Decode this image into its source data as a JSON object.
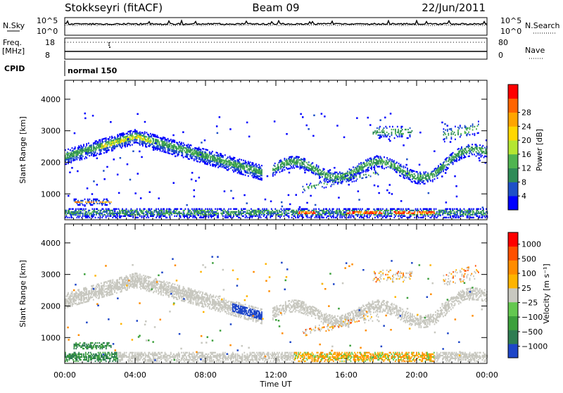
{
  "header": {
    "station": "Stokkseyri (fitACF)",
    "beam": "Beam 09",
    "date": "22/Jun/2011"
  },
  "strip": {
    "nsky_label": "N.Sky",
    "nsky_ticks": [
      "10^5",
      "10^0"
    ],
    "nsearch_label": "N.Search",
    "nsearch_ticks": [
      "10^5",
      "10^0"
    ],
    "freq_label": "Freq.",
    "freq_unit": "[MHz]",
    "freq_ticks": [
      "18",
      "8"
    ],
    "nave_label": "Nave",
    "nave_ticks": [
      "80",
      "0"
    ],
    "cpid_label": "CPID",
    "cpid_value": "normal 150"
  },
  "colors": {
    "power_scale": [
      "#0000ff",
      "#1e50c8",
      "#2e8b57",
      "#50b450",
      "#b4e632",
      "#ffd700",
      "#ffa500",
      "#ff6400",
      "#ff0000"
    ],
    "velocity_scale": [
      "#1e46c8",
      "#2e7d52",
      "#3ca03c",
      "#64c850",
      "#c8c8c0",
      "#ffb400",
      "#ff8c00",
      "#ff5000",
      "#ff0000"
    ]
  },
  "chart_data": [
    {
      "type": "heatmap",
      "name": "power",
      "ylabel": "Slant Range [km]",
      "ylim": [
        180,
        4600
      ],
      "yticks": [
        "1000",
        "2000",
        "3000",
        "4000"
      ],
      "xlim": [
        "00:00",
        "24:00"
      ],
      "xticks": [
        "00:00",
        "04:00",
        "08:00",
        "12:00",
        "16:00",
        "20:00",
        "00:00"
      ],
      "colorbar": {
        "label": "Power [dB]",
        "range": [
          0,
          30
        ],
        "ticks": [
          "4",
          "8",
          "12",
          "16",
          "20",
          "24",
          "28"
        ]
      }
    },
    {
      "type": "heatmap",
      "name": "velocity",
      "ylabel": "Slant Range [km]",
      "ylim": [
        180,
        4600
      ],
      "yticks": [
        "1000",
        "2000",
        "3000",
        "4000"
      ],
      "xlim": [
        "00:00",
        "24:00"
      ],
      "xticks": [
        "00:00",
        "04:00",
        "08:00",
        "12:00",
        "16:00",
        "20:00",
        "00:00"
      ],
      "xlabel": "Time UT",
      "colorbar": {
        "label": "Velocity [m s⁻¹]",
        "ticks": [
          "1000",
          "500",
          "100",
          "25",
          "−25",
          "−100",
          "−500",
          "−1000"
        ]
      }
    }
  ]
}
